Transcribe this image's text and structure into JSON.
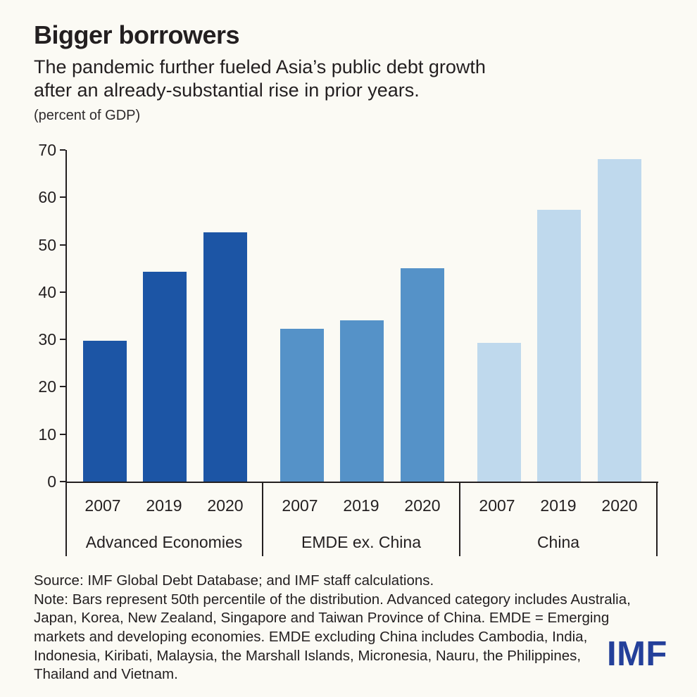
{
  "header": {
    "title": "Bigger borrowers",
    "subtitle": "The pandemic further fueled Asia’s public debt growth\nafter an already-substantial rise in prior years.",
    "unit": "(percent of GDP)"
  },
  "chart_data": {
    "type": "bar",
    "title": "Bigger borrowers",
    "ylabel": "(percent of GDP)",
    "ylim": [
      0,
      70
    ],
    "yticks": [
      0,
      10,
      20,
      30,
      40,
      50,
      60,
      70
    ],
    "grid": false,
    "years": [
      "2007",
      "2019",
      "2020"
    ],
    "groups": [
      {
        "label": "Advanced Economies",
        "color": "#1c55a5",
        "values": [
          29.8,
          44.3,
          52.6
        ]
      },
      {
        "label": "EMDE ex. China",
        "color": "#5592c8",
        "values": [
          32.3,
          34.1,
          45.1
        ]
      },
      {
        "label": "China",
        "color": "#bfd9ed",
        "values": [
          29.3,
          57.3,
          68.0
        ]
      }
    ]
  },
  "footer": {
    "source": "Source: IMF Global Debt Database; and IMF staff calculations.",
    "note": "Note: Bars represent 50th percentile of the distribution. Advanced category includes Australia,\nJapan, Korea, New Zealand, Singapore and Taiwan Province of China. EMDE = Emerging\nmarkets and developing economies. EMDE excluding China includes Cambodia, India,\nIndonesia, Kiribati, Malaysia, the Marshall Islands, Micronesia, Nauru, the Philippines,\nThailand and Vietnam.",
    "logo": "IMF"
  },
  "colors": {
    "background": "#fbfaf4",
    "text": "#231f20",
    "axis": "#231f20",
    "logo_blue": "#24409a"
  }
}
